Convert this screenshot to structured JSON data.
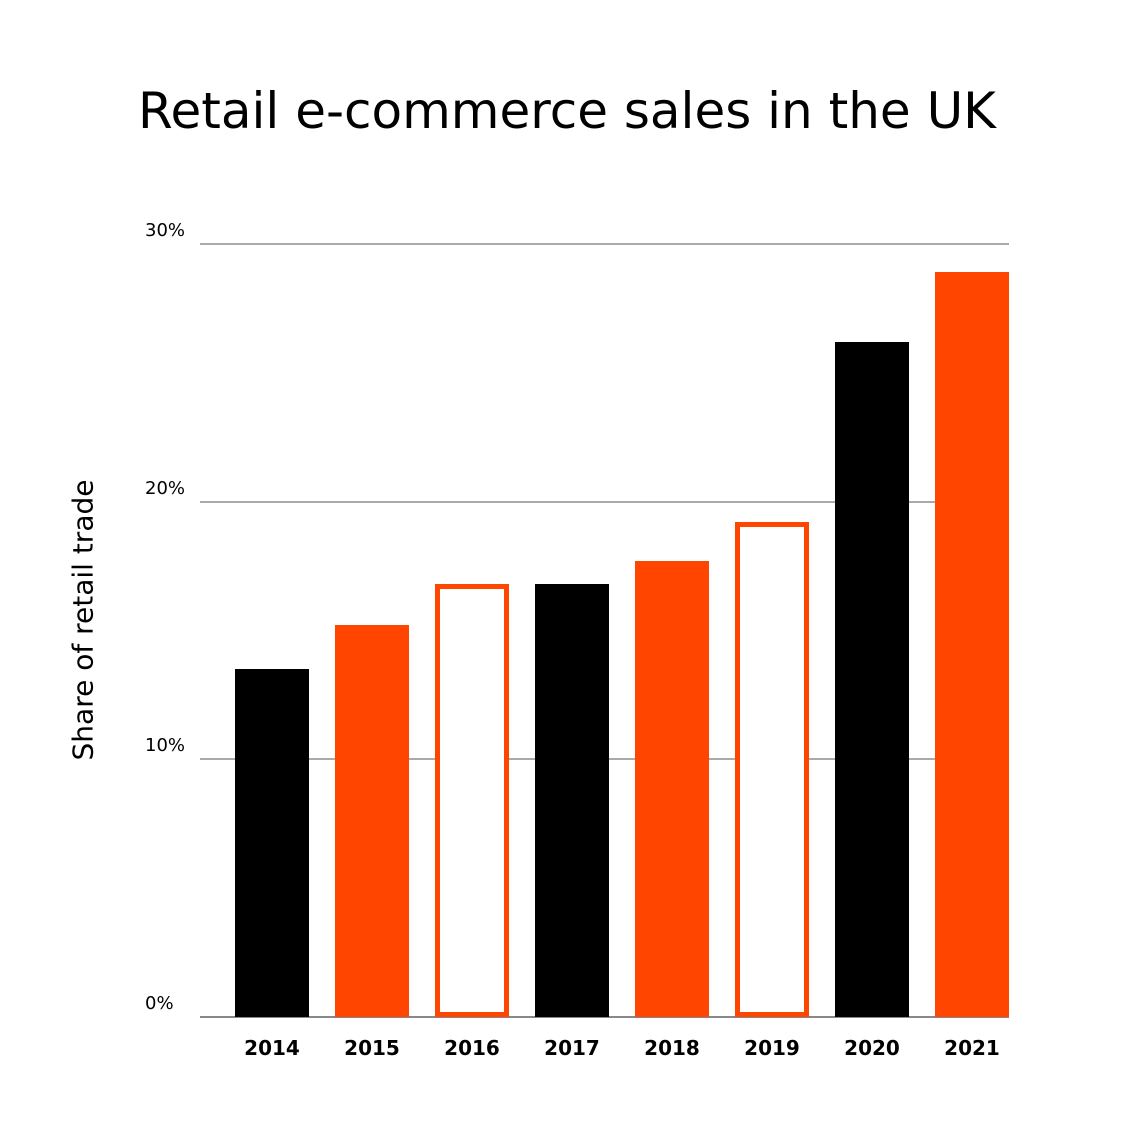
{
  "chart_data": {
    "type": "bar",
    "title": "Retail e-commerce sales in the UK",
    "xlabel": "",
    "ylabel": "Share of retail trade",
    "ylim": [
      0,
      30
    ],
    "yticks": [
      "0%",
      "10%",
      "20%",
      "30%"
    ],
    "grid": true,
    "categories": [
      "2014",
      "2015",
      "2016",
      "2017",
      "2018",
      "2019",
      "2020",
      "2021"
    ],
    "values": [
      13.5,
      15.2,
      16.8,
      16.8,
      17.7,
      19.2,
      26.2,
      28.9
    ],
    "styles": [
      "black",
      "orange",
      "orange-outline",
      "black",
      "orange",
      "orange-outline",
      "black",
      "orange"
    ]
  },
  "colors": {
    "orange": "#ff4500",
    "black": "#000000",
    "grid": "#aaaaaa"
  }
}
